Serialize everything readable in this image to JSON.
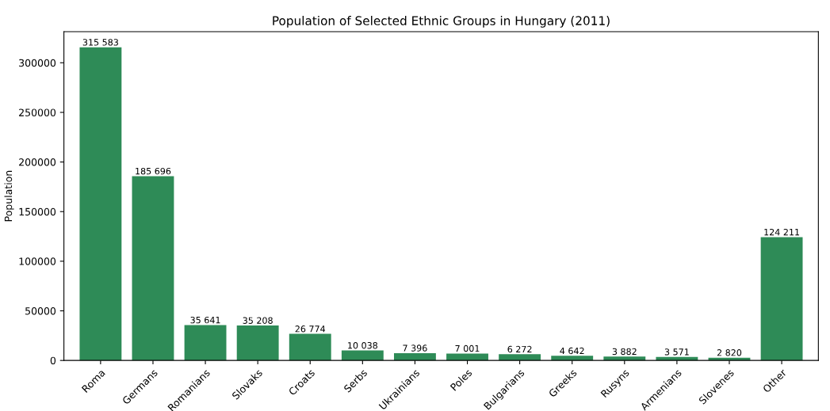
{
  "chart_data": {
    "type": "bar",
    "title": "Population of Selected Ethnic Groups in Hungary (2011)",
    "ylabel": "Population",
    "categories": [
      "Roma",
      "Germans",
      "Romanians",
      "Slovaks",
      "Croats",
      "Serbs",
      "Ukrainians",
      "Poles",
      "Bulgarians",
      "Greeks",
      "Rusyns",
      "Armenians",
      "Slovenes",
      "Other"
    ],
    "values": [
      315583,
      185696,
      35641,
      35208,
      26774,
      10038,
      7396,
      7001,
      6272,
      4642,
      3882,
      3571,
      2820,
      124211
    ],
    "value_labels": [
      "315 583",
      "185 696",
      "35 641",
      "35 208",
      "26 774",
      "10 038",
      "7 396",
      "7 001",
      "6 272",
      "4 642",
      "3 882",
      "3 571",
      "2 820",
      "124 211"
    ],
    "color": "#2e8b57",
    "ylim": [
      0,
      331362
    ],
    "yticks": [
      0,
      50000,
      100000,
      150000,
      200000,
      250000,
      300000
    ],
    "grid": false,
    "legend": false
  }
}
